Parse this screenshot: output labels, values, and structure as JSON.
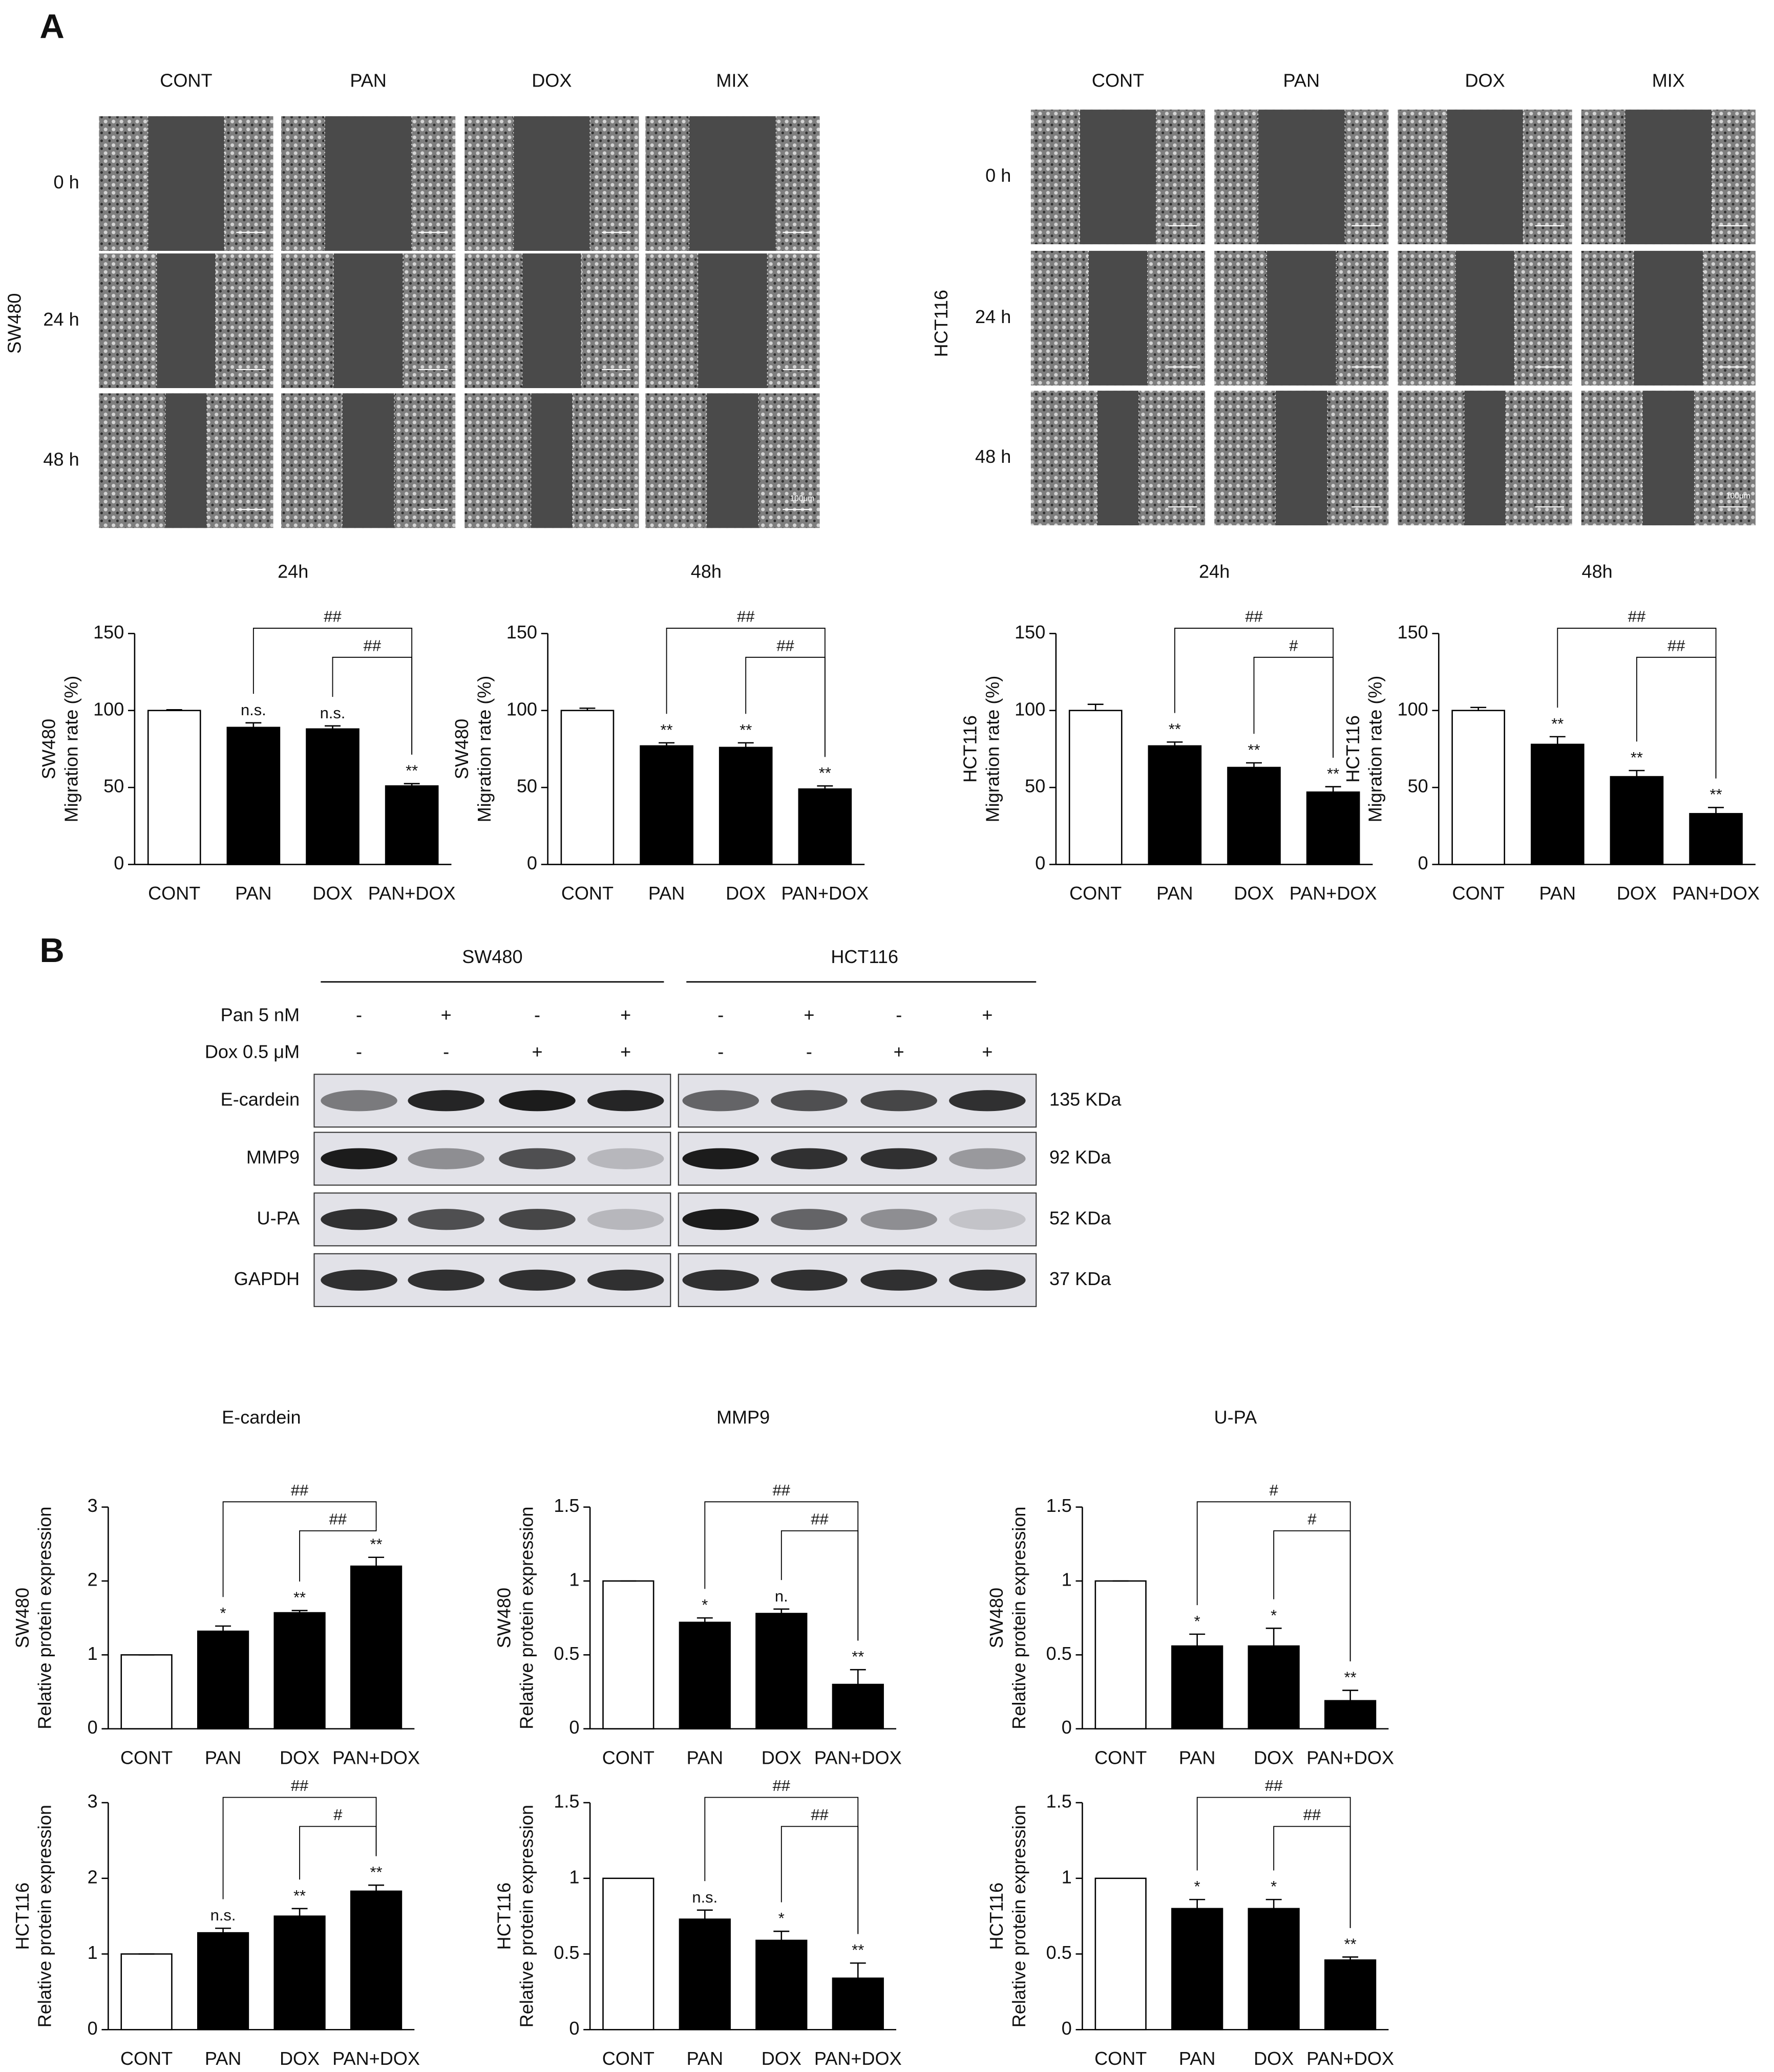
{
  "panel_a": {
    "label": "A",
    "wound_healing": [
      {
        "cell_line": "SW480",
        "columns": [
          "CONT",
          "PAN",
          "DOX",
          "MIX"
        ],
        "rows": [
          "0 h",
          "24 h",
          "48 h"
        ],
        "scale_bar": "100μm"
      },
      {
        "cell_line": "HCT116",
        "columns": [
          "CONT",
          "PAN",
          "DOX",
          "MIX"
        ],
        "rows": [
          "0 h",
          "24 h",
          "48 h"
        ],
        "scale_bar": "100μm"
      }
    ]
  },
  "chart_data": [
    {
      "type": "bar",
      "title": "24h",
      "ylabel": [
        "SW480",
        "Migration rate (%)"
      ],
      "categories": [
        "CONT",
        "PAN",
        "DOX",
        "PAN+DOX"
      ],
      "values": [
        100,
        89,
        88,
        51
      ],
      "errors": [
        0.5,
        3,
        2,
        1.5
      ],
      "annotations": [
        null,
        "n.s.",
        "n.s.",
        "**"
      ],
      "brackets": [
        {
          "between": [
            "PAN",
            "PAN+DOX"
          ],
          "label": "##"
        },
        {
          "between": [
            "DOX",
            "PAN+DOX"
          ],
          "label": "##"
        }
      ],
      "colors": [
        "#ffffff",
        "#000000",
        "#000000",
        "#000000"
      ],
      "ylim": [
        0,
        150
      ],
      "yticks": [
        0,
        50,
        100,
        150
      ]
    },
    {
      "type": "bar",
      "title": "48h",
      "ylabel": [
        "SW480",
        "Migration rate (%)"
      ],
      "categories": [
        "CONT",
        "PAN",
        "DOX",
        "PAN+DOX"
      ],
      "values": [
        100,
        77,
        76,
        49
      ],
      "errors": [
        1.5,
        2,
        3,
        2
      ],
      "annotations": [
        null,
        "**",
        "**",
        "**"
      ],
      "brackets": [
        {
          "between": [
            "PAN",
            "PAN+DOX"
          ],
          "label": "##"
        },
        {
          "between": [
            "DOX",
            "PAN+DOX"
          ],
          "label": "##"
        }
      ],
      "colors": [
        "#ffffff",
        "#000000",
        "#000000",
        "#000000"
      ],
      "ylim": [
        0,
        150
      ],
      "yticks": [
        0,
        50,
        100,
        150
      ]
    },
    {
      "type": "bar",
      "title": "24h",
      "ylabel": [
        "HCT116",
        "Migration rate (%)"
      ],
      "categories": [
        "CONT",
        "PAN",
        "DOX",
        "PAN+DOX"
      ],
      "values": [
        100,
        77,
        63,
        47
      ],
      "errors": [
        4,
        2.5,
        3,
        3.5
      ],
      "annotations": [
        null,
        "**",
        "**",
        "**"
      ],
      "brackets": [
        {
          "between": [
            "PAN",
            "PAN+DOX"
          ],
          "label": "##"
        },
        {
          "between": [
            "DOX",
            "PAN+DOX"
          ],
          "label": "#"
        }
      ],
      "colors": [
        "#ffffff",
        "#000000",
        "#000000",
        "#000000"
      ],
      "ylim": [
        0,
        150
      ],
      "yticks": [
        0,
        50,
        100,
        150
      ]
    },
    {
      "type": "bar",
      "title": "48h",
      "ylabel": [
        "HCT116",
        "Migration rate (%)"
      ],
      "categories": [
        "CONT",
        "PAN",
        "DOX",
        "PAN+DOX"
      ],
      "values": [
        100,
        78,
        57,
        33
      ],
      "errors": [
        2,
        5,
        4,
        4
      ],
      "annotations": [
        null,
        "**",
        "**",
        "**"
      ],
      "brackets": [
        {
          "between": [
            "PAN",
            "PAN+DOX"
          ],
          "label": "##"
        },
        {
          "between": [
            "DOX",
            "PAN+DOX"
          ],
          "label": "##"
        }
      ],
      "colors": [
        "#ffffff",
        "#000000",
        "#000000",
        "#000000"
      ],
      "ylim": [
        0,
        150
      ],
      "yticks": [
        0,
        50,
        100,
        150
      ]
    },
    {
      "type": "bar",
      "title": "E-cardein",
      "ylabel": [
        "SW480",
        "Relative protein expression"
      ],
      "categories": [
        "CONT",
        "PAN",
        "DOX",
        "PAN+DOX"
      ],
      "values": [
        1,
        1.32,
        1.57,
        2.2
      ],
      "errors": [
        0,
        0.07,
        0.03,
        0.12
      ],
      "annotations": [
        null,
        "*",
        "**",
        "**"
      ],
      "brackets": [
        {
          "between": [
            "PAN",
            "PAN+DOX"
          ],
          "label": "##"
        },
        {
          "between": [
            "DOX",
            "PAN+DOX"
          ],
          "label": "##"
        }
      ],
      "colors": [
        "#ffffff",
        "#000000",
        "#000000",
        "#000000"
      ],
      "ylim": [
        0,
        3
      ],
      "yticks": [
        0,
        1,
        2,
        3
      ]
    },
    {
      "type": "bar",
      "title": "MMP9",
      "ylabel": [
        "SW480",
        "Relative protein expression"
      ],
      "categories": [
        "CONT",
        "PAN",
        "DOX",
        "PAN+DOX"
      ],
      "values": [
        1,
        0.72,
        0.78,
        0.3
      ],
      "errors": [
        0,
        0.03,
        0.03,
        0.1
      ],
      "annotations": [
        null,
        "*",
        "n.",
        "**"
      ],
      "brackets": [
        {
          "between": [
            "PAN",
            "PAN+DOX"
          ],
          "label": "##"
        },
        {
          "between": [
            "DOX",
            "PAN+DOX"
          ],
          "label": "##"
        }
      ],
      "colors": [
        "#ffffff",
        "#000000",
        "#000000",
        "#000000"
      ],
      "ylim": [
        0,
        1.5
      ],
      "yticks": [
        0,
        0.5,
        1,
        1.5
      ]
    },
    {
      "type": "bar",
      "title": "U-PA",
      "ylabel": [
        "SW480",
        "Relative protein expression"
      ],
      "categories": [
        "CONT",
        "PAN",
        "DOX",
        "PAN+DOX"
      ],
      "values": [
        1,
        0.56,
        0.56,
        0.19
      ],
      "errors": [
        0,
        0.08,
        0.12,
        0.07
      ],
      "annotations": [
        null,
        "*",
        "*",
        "**"
      ],
      "brackets": [
        {
          "between": [
            "PAN",
            "PAN+DOX"
          ],
          "label": "#"
        },
        {
          "between": [
            "DOX",
            "PAN+DOX"
          ],
          "label": "#"
        }
      ],
      "colors": [
        "#ffffff",
        "#000000",
        "#000000",
        "#000000"
      ],
      "ylim": [
        0,
        1.5
      ],
      "yticks": [
        0,
        0.5,
        1,
        1.5
      ]
    },
    {
      "type": "bar",
      "ylabel": [
        "HCT116",
        "Relative protein expression"
      ],
      "categories": [
        "CONT",
        "PAN",
        "DOX",
        "PAN+DOX"
      ],
      "values": [
        1,
        1.28,
        1.5,
        1.83
      ],
      "errors": [
        0,
        0.06,
        0.1,
        0.08
      ],
      "annotations": [
        null,
        "n.s.",
        "**",
        "**"
      ],
      "brackets": [
        {
          "between": [
            "PAN",
            "PAN+DOX"
          ],
          "label": "##"
        },
        {
          "between": [
            "DOX",
            "PAN+DOX"
          ],
          "label": "#"
        }
      ],
      "colors": [
        "#ffffff",
        "#000000",
        "#000000",
        "#000000"
      ],
      "ylim": [
        0,
        3
      ],
      "yticks": [
        0,
        1,
        2,
        3
      ]
    },
    {
      "type": "bar",
      "ylabel": [
        "HCT116",
        "Relative protein expression"
      ],
      "categories": [
        "CONT",
        "PAN",
        "DOX",
        "PAN+DOX"
      ],
      "values": [
        1,
        0.73,
        0.59,
        0.34
      ],
      "errors": [
        0,
        0.06,
        0.06,
        0.1
      ],
      "annotations": [
        null,
        "n.s.",
        "*",
        "**"
      ],
      "brackets": [
        {
          "between": [
            "PAN",
            "PAN+DOX"
          ],
          "label": "##"
        },
        {
          "between": [
            "DOX",
            "PAN+DOX"
          ],
          "label": "##"
        }
      ],
      "colors": [
        "#ffffff",
        "#000000",
        "#000000",
        "#000000"
      ],
      "ylim": [
        0,
        1.5
      ],
      "yticks": [
        0,
        0.5,
        1,
        1.5
      ]
    },
    {
      "type": "bar",
      "ylabel": [
        "HCT116",
        "Relative protein expression"
      ],
      "categories": [
        "CONT",
        "PAN",
        "DOX",
        "PAN+DOX"
      ],
      "values": [
        1,
        0.8,
        0.8,
        0.46
      ],
      "errors": [
        0,
        0.06,
        0.06,
        0.02
      ],
      "annotations": [
        null,
        "*",
        "*",
        "**"
      ],
      "brackets": [
        {
          "between": [
            "PAN",
            "PAN+DOX"
          ],
          "label": "##"
        },
        {
          "between": [
            "DOX",
            "PAN+DOX"
          ],
          "label": "##"
        }
      ],
      "colors": [
        "#ffffff",
        "#000000",
        "#000000",
        "#000000"
      ],
      "ylim": [
        0,
        1.5
      ],
      "yticks": [
        0,
        0.5,
        1,
        1.5
      ]
    }
  ],
  "panel_b": {
    "label": "B",
    "cell_lines": [
      "SW480",
      "HCT116"
    ],
    "treatments": [
      {
        "name": "Pan 5 nM",
        "signs": [
          "-",
          "+",
          "-",
          "+",
          "-",
          "+",
          "-",
          "+"
        ]
      },
      {
        "name": "Dox 0.5 μM",
        "signs": [
          "-",
          "-",
          "+",
          "+",
          "-",
          "-",
          "+",
          "+"
        ]
      }
    ],
    "proteins": [
      {
        "name": "E-cardein",
        "size": "135 KDa"
      },
      {
        "name": "MMP9",
        "size": "92 KDa"
      },
      {
        "name": "U-PA",
        "size": "52 KDa"
      },
      {
        "name": "GAPDH",
        "size": "37 KDa"
      }
    ]
  }
}
